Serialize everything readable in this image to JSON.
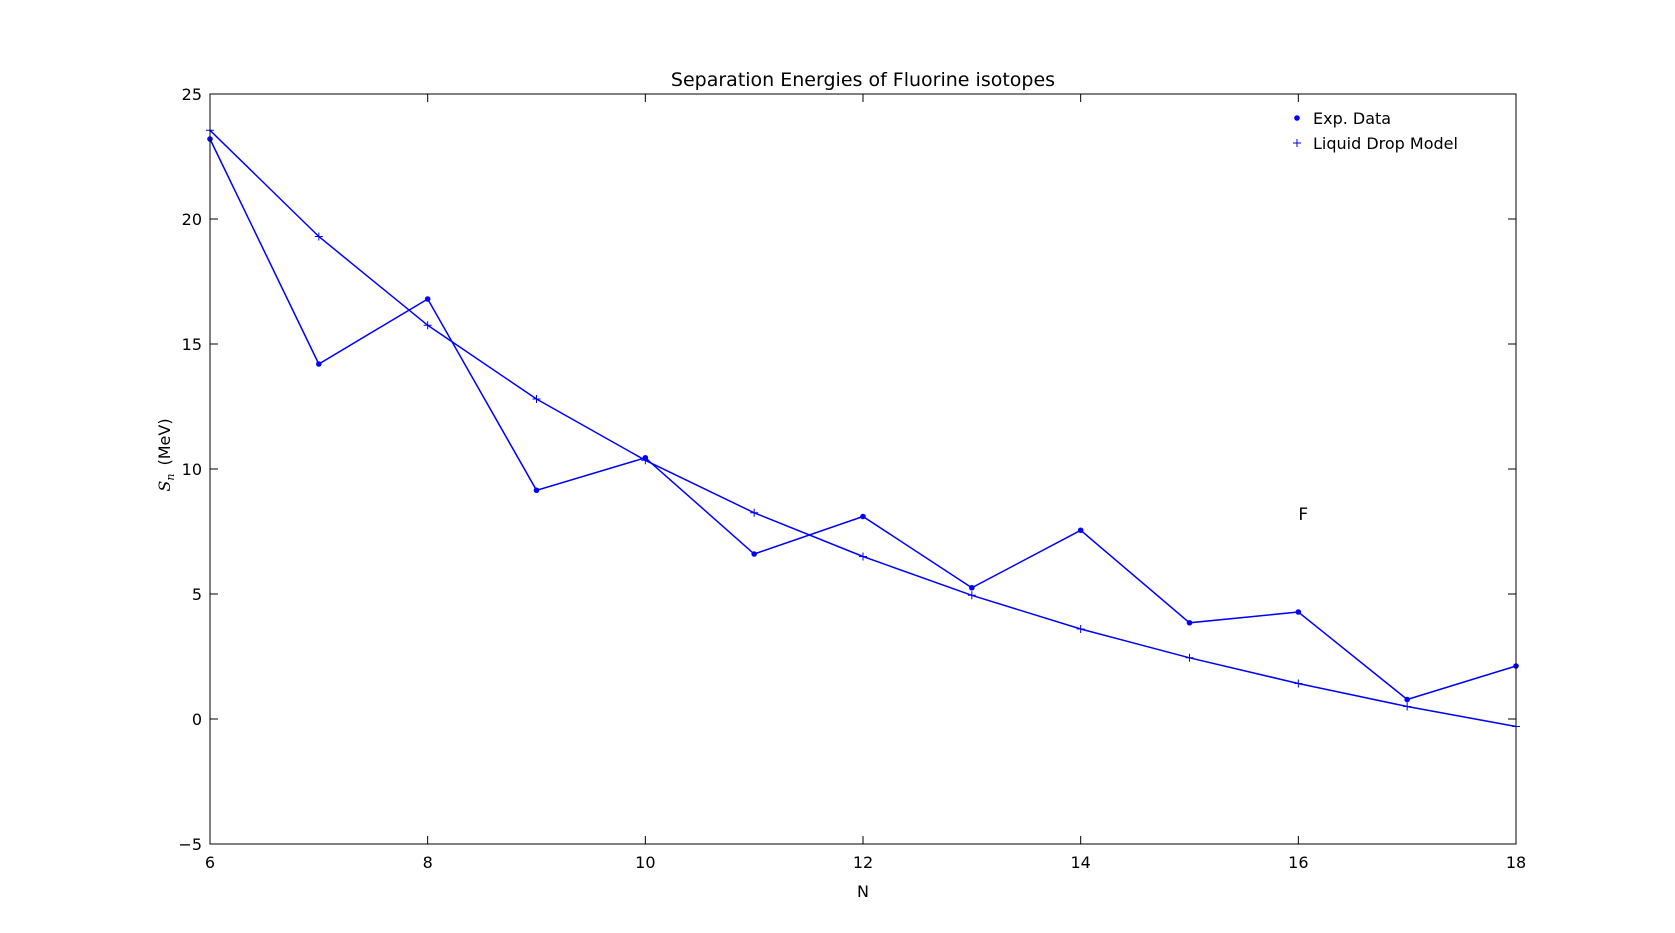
{
  "chart_data": {
    "type": "line",
    "title": "Separation Energies of Fluorine isotopes",
    "xlabel": "N",
    "ylabel_symbol": "S",
    "ylabel_subscript": "n",
    "ylabel_unit": "(MeV)",
    "xlim": [
      6,
      18
    ],
    "ylim": [
      -5,
      25
    ],
    "xticks": [
      6,
      8,
      10,
      12,
      14,
      16,
      18
    ],
    "yticks": [
      -5,
      0,
      5,
      10,
      15,
      20,
      25
    ],
    "xtick_labels": [
      "6",
      "8",
      "10",
      "12",
      "14",
      "16",
      "18"
    ],
    "ytick_labels": [
      "−5",
      "0",
      "5",
      "10",
      "15",
      "20",
      "25"
    ],
    "grid": false,
    "legend_position": "top-right",
    "series": [
      {
        "name": "Exp. Data",
        "marker": "dot",
        "color": "#0000ff",
        "x": [
          6,
          7,
          8,
          9,
          10,
          11,
          12,
          13,
          14,
          15,
          16,
          17,
          18
        ],
        "y": [
          23.2,
          14.2,
          16.8,
          9.15,
          10.45,
          6.6,
          8.1,
          5.25,
          7.55,
          3.85,
          4.28,
          0.78,
          2.12
        ]
      },
      {
        "name": "Liquid Drop Model",
        "marker": "plus",
        "color": "#0000ff",
        "x": [
          6,
          7,
          8,
          9,
          10,
          11,
          12,
          13,
          14,
          15,
          16,
          17,
          18
        ],
        "y": [
          23.55,
          19.3,
          15.75,
          12.8,
          10.35,
          8.25,
          6.5,
          4.95,
          3.6,
          2.45,
          1.42,
          0.5,
          -0.3
        ]
      }
    ],
    "annotations": [
      {
        "text": "F",
        "x": 16,
        "y": 8.2
      }
    ]
  }
}
